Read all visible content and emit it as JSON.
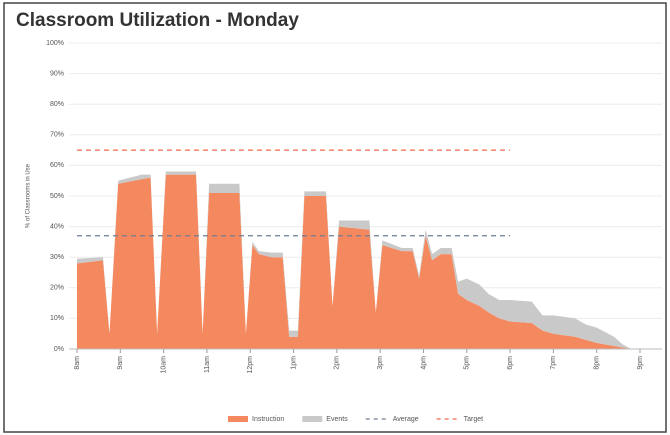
{
  "chart_data": {
    "type": "stacked_area",
    "title": "Classroom Utilization - Monday",
    "y_label": "% of Classrooms in Use",
    "x": [
      8.0,
      8.6,
      8.75,
      8.95,
      9.5,
      9.7,
      9.85,
      10.05,
      10.75,
      10.9,
      11.05,
      11.75,
      11.9,
      12.05,
      12.2,
      12.5,
      12.75,
      12.9,
      13.1,
      13.25,
      13.75,
      13.9,
      14.05,
      14.75,
      14.9,
      15.05,
      15.5,
      15.75,
      15.9,
      16.05,
      16.2,
      16.4,
      16.65,
      16.8,
      17.0,
      17.3,
      17.5,
      17.75,
      18.0,
      18.5,
      18.75,
      19.0,
      19.5,
      19.75,
      20.0,
      20.4,
      20.6,
      20.8,
      21.0
    ],
    "series": [
      {
        "name": "Instruction",
        "color": "#f4895f",
        "values": [
          28,
          29,
          5,
          54,
          55.5,
          56,
          5,
          57,
          57,
          5,
          51,
          51,
          5,
          34,
          31,
          30,
          30,
          4,
          4,
          50,
          50,
          14,
          40,
          39,
          12,
          34,
          32,
          32,
          23,
          37,
          29,
          31,
          31,
          18,
          16,
          14,
          12,
          10,
          9,
          8.5,
          6,
          5,
          4,
          3,
          2,
          1,
          0.5,
          0,
          0
        ]
      },
      {
        "name": "Events",
        "color": "#c9c9c9",
        "values": [
          1.5,
          1,
          0,
          1,
          1.5,
          1,
          0,
          1,
          1,
          0,
          3,
          3,
          0,
          1,
          1,
          1.5,
          1.5,
          2,
          2,
          1.5,
          1.5,
          0,
          2,
          3,
          0,
          1.5,
          1,
          1,
          1,
          2,
          2,
          2,
          2,
          4,
          7,
          7,
          6,
          6,
          7,
          7,
          5,
          6,
          6,
          5,
          5,
          3,
          1,
          0,
          0
        ]
      }
    ],
    "reference_lines": [
      {
        "name": "Average",
        "value": 37,
        "color": "#6f7d92",
        "x_end": 18
      },
      {
        "name": "Target",
        "value": 65,
        "color": "#f06a4c",
        "x_end": 18
      }
    ],
    "xlim": [
      8,
      21
    ],
    "xticks": [
      {
        "value": 8,
        "label": "8am"
      },
      {
        "value": 9,
        "label": "9am"
      },
      {
        "value": 10,
        "label": "10am"
      },
      {
        "value": 11,
        "label": "11am"
      },
      {
        "value": 12,
        "label": "12pm"
      },
      {
        "value": 13,
        "label": "1pm"
      },
      {
        "value": 14,
        "label": "2pm"
      },
      {
        "value": 15,
        "label": "3pm"
      },
      {
        "value": 16,
        "label": "4pm"
      },
      {
        "value": 17,
        "label": "5pm"
      },
      {
        "value": 18,
        "label": "6pm"
      },
      {
        "value": 19,
        "label": "7pm"
      },
      {
        "value": 20,
        "label": "8pm"
      },
      {
        "value": 21,
        "label": "9pm"
      }
    ],
    "ylim": [
      0,
      100
    ],
    "yticks": [
      {
        "value": 0,
        "label": "0%"
      },
      {
        "value": 10,
        "label": "10%"
      },
      {
        "value": 20,
        "label": "20%"
      },
      {
        "value": 30,
        "label": "30%"
      },
      {
        "value": 40,
        "label": "40%"
      },
      {
        "value": 50,
        "label": "50%"
      },
      {
        "value": 60,
        "label": "60%"
      },
      {
        "value": 70,
        "label": "70%"
      },
      {
        "value": 80,
        "label": "80%"
      },
      {
        "value": 90,
        "label": "90%"
      },
      {
        "value": 100,
        "label": "100%"
      }
    ],
    "grid": true
  }
}
